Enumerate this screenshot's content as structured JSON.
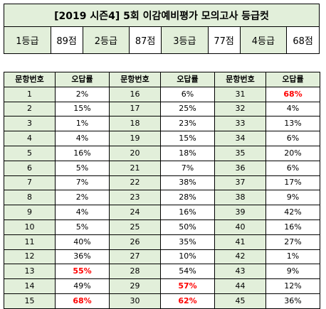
{
  "title": "[2019 시즌4] 5회 이감예비평가 모의고사 등급컷",
  "grades": [
    {
      "label": "1등급",
      "score": "89점"
    },
    {
      "label": "2등급",
      "score": "87점"
    },
    {
      "label": "3등급",
      "score": "77점"
    },
    {
      "label": "4등급",
      "score": "68점"
    }
  ],
  "table": {
    "headers": [
      "문항번호",
      "오답률",
      "문항번호",
      "오답률",
      "문항번호",
      "오답률"
    ],
    "rows": [
      [
        {
          "n": "1",
          "r": "2%"
        },
        {
          "n": "16",
          "r": "6%"
        },
        {
          "n": "31",
          "r": "68%",
          "hi": true
        }
      ],
      [
        {
          "n": "2",
          "r": "15%"
        },
        {
          "n": "17",
          "r": "25%"
        },
        {
          "n": "32",
          "r": "4%"
        }
      ],
      [
        {
          "n": "3",
          "r": "1%"
        },
        {
          "n": "18",
          "r": "23%"
        },
        {
          "n": "33",
          "r": "13%"
        }
      ],
      [
        {
          "n": "4",
          "r": "4%"
        },
        {
          "n": "19",
          "r": "15%"
        },
        {
          "n": "34",
          "r": "6%"
        }
      ],
      [
        {
          "n": "5",
          "r": "16%"
        },
        {
          "n": "20",
          "r": "18%"
        },
        {
          "n": "35",
          "r": "20%"
        }
      ],
      [
        {
          "n": "6",
          "r": "5%"
        },
        {
          "n": "21",
          "r": "7%"
        },
        {
          "n": "36",
          "r": "6%"
        }
      ],
      [
        {
          "n": "7",
          "r": "7%"
        },
        {
          "n": "22",
          "r": "38%"
        },
        {
          "n": "37",
          "r": "17%"
        }
      ],
      [
        {
          "n": "8",
          "r": "2%"
        },
        {
          "n": "23",
          "r": "28%"
        },
        {
          "n": "38",
          "r": "9%"
        }
      ],
      [
        {
          "n": "9",
          "r": "4%"
        },
        {
          "n": "24",
          "r": "16%"
        },
        {
          "n": "39",
          "r": "42%"
        }
      ],
      [
        {
          "n": "10",
          "r": "5%"
        },
        {
          "n": "25",
          "r": "50%"
        },
        {
          "n": "40",
          "r": "16%"
        }
      ],
      [
        {
          "n": "11",
          "r": "40%"
        },
        {
          "n": "26",
          "r": "35%"
        },
        {
          "n": "41",
          "r": "27%"
        }
      ],
      [
        {
          "n": "12",
          "r": "36%"
        },
        {
          "n": "27",
          "r": "10%"
        },
        {
          "n": "42",
          "r": "1%"
        }
      ],
      [
        {
          "n": "13",
          "r": "55%",
          "hi": true
        },
        {
          "n": "28",
          "r": "54%"
        },
        {
          "n": "43",
          "r": "9%"
        }
      ],
      [
        {
          "n": "14",
          "r": "49%"
        },
        {
          "n": "29",
          "r": "57%",
          "hi": true
        },
        {
          "n": "44",
          "r": "12%"
        }
      ],
      [
        {
          "n": "15",
          "r": "68%",
          "hi": true
        },
        {
          "n": "30",
          "r": "62%",
          "hi": true
        },
        {
          "n": "45",
          "r": "36%"
        }
      ]
    ]
  },
  "colors": {
    "header_bg": "#e2efda",
    "highlight_text": "#ff0000"
  }
}
